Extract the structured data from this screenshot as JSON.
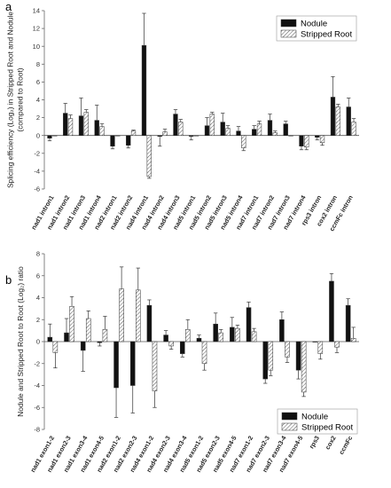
{
  "chart_data": [
    {
      "panel_label": "a",
      "type": "bar",
      "ylabel_lines": [
        "Splicing efficiency (Log₂) in Stripped Root and Nodule",
        "(compared to Root)"
      ],
      "ylim": [
        -6,
        14
      ],
      "yticks": [
        -6,
        -4,
        -2,
        0,
        2,
        4,
        6,
        8,
        10,
        12,
        14
      ],
      "categories": [
        "nad1 intron1",
        "nad1 intron2",
        "nad1 intron3",
        "nad1 intron4",
        "nad2 intron1",
        "nad2 intron2",
        "nad4 intron1",
        "nad4 intron2",
        "nad4 intron3",
        "nad5 intron1",
        "nad5 intron2",
        "nad5 intron3",
        "nad5 intron4",
        "nad7 intron1",
        "nad7 intron2",
        "nad7 intron3",
        "nad7 intron4",
        "rps3 intron",
        "cox2 intron",
        "ccmFc intron"
      ],
      "legend_position": "top-right",
      "series": [
        {
          "name": "Nodule",
          "fill": "#111111",
          "values": [
            -0.3,
            2.5,
            2.2,
            1.7,
            -1.2,
            -1.1,
            10.1,
            -0.1,
            2.4,
            -0.1,
            1.1,
            1.5,
            0.5,
            0.7,
            1.7,
            1.3,
            -1.2,
            -0.2,
            4.3,
            3.2
          ],
          "errors": [
            0.3,
            1.1,
            2.0,
            1.7,
            0.3,
            0.3,
            3.6,
            1.1,
            0.5,
            0.4,
            0.9,
            1.0,
            0.5,
            0.4,
            0.7,
            0.3,
            0.4,
            0.3,
            2.3,
            1.0
          ]
        },
        {
          "name": "Stripped Root",
          "fill": "hatch",
          "values": [
            0.0,
            1.9,
            2.6,
            1.0,
            0.0,
            0.5,
            -4.6,
            0.4,
            1.5,
            0.0,
            2.4,
            0.8,
            -1.4,
            1.3,
            0.3,
            0.0,
            -1.3,
            -0.8,
            3.2,
            1.5
          ],
          "errors": [
            0.0,
            0.4,
            0.3,
            0.3,
            0.0,
            0.1,
            0.2,
            0.3,
            0.3,
            0.0,
            0.2,
            0.3,
            0.3,
            0.3,
            0.2,
            0.0,
            0.3,
            0.3,
            0.3,
            0.4
          ]
        }
      ]
    },
    {
      "panel_label": "b",
      "type": "bar",
      "ylabel_lines": [
        "Nodule and Stripped Root to Root (Log₂) ratio"
      ],
      "ylim": [
        -8,
        8
      ],
      "yticks": [
        -8,
        -6,
        -4,
        -2,
        0,
        2,
        4,
        6,
        8
      ],
      "categories": [
        "nad1 exon1-2",
        "nad1 exon2-3",
        "nad1 exon3-4",
        "nad1 exon4-5",
        "nad2 exon1-2",
        "nad2 exon2-3",
        "nad4 exon1-2",
        "nad4 exon2-3",
        "nad4 exon3-4",
        "nad5 exon1-2",
        "nad5 exon2-3",
        "nad5 exon4-5",
        "nad7 exon1-2",
        "nad7 exon2-3",
        "nad7 exon3-4",
        "nad7 exon4-5",
        "rps3",
        "cox2",
        "ccmFc"
      ],
      "legend_position": "bottom-right",
      "series": [
        {
          "name": "Nodule",
          "fill": "#111111",
          "values": [
            0.4,
            0.8,
            -0.8,
            -0.1,
            -4.2,
            -4.0,
            3.3,
            0.6,
            -1.1,
            0.3,
            1.6,
            1.3,
            3.1,
            -3.4,
            2.0,
            -2.6,
            0.0,
            5.5,
            3.3
          ],
          "errors": [
            1.2,
            1.3,
            1.9,
            0.3,
            2.7,
            2.5,
            0.5,
            0.4,
            0.3,
            0.3,
            1.0,
            0.9,
            0.5,
            0.4,
            0.7,
            0.8,
            0.0,
            0.7,
            0.6
          ]
        },
        {
          "name": "Stripped Root",
          "fill": "hatch",
          "values": [
            -1.0,
            3.2,
            2.1,
            1.1,
            4.8,
            4.7,
            -4.5,
            -0.4,
            1.1,
            -2.0,
            0.8,
            1.2,
            0.9,
            -2.6,
            -1.4,
            -4.6,
            -1.1,
            -0.5,
            0.3
          ],
          "errors": [
            1.4,
            0.9,
            0.7,
            1.2,
            2.0,
            2.0,
            1.5,
            0.3,
            0.9,
            0.6,
            0.3,
            0.3,
            0.3,
            0.5,
            0.5,
            0.4,
            0.5,
            0.5,
            1.0
          ]
        }
      ]
    }
  ]
}
